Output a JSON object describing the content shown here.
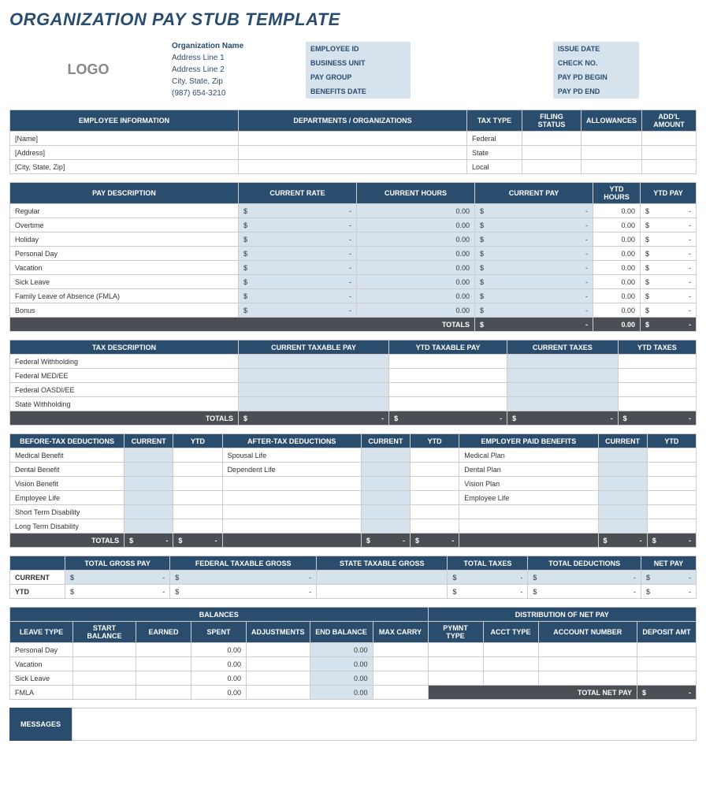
{
  "title": "ORGANIZATION PAY STUB TEMPLATE",
  "logo": "LOGO",
  "org": {
    "name": "Organization Name",
    "l1": "Address Line 1",
    "l2": "Address Line 2",
    "l3": "City, State, Zip",
    "l4": "(987) 654-3210"
  },
  "meta": {
    "left": [
      "EMPLOYEE ID",
      "BUSINESS UNIT",
      "PAY GROUP",
      "BENEFITS DATE"
    ],
    "right": [
      "ISSUE DATE",
      "CHECK NO.",
      "PAY PD BEGIN",
      "PAY PD END"
    ]
  },
  "emp": {
    "h1": "EMPLOYEE INFORMATION",
    "h2": "DEPARTMENTS / ORGANIZATIONS",
    "h3": "TAX TYPE",
    "h4": "FILING STATUS",
    "h5": "ALLOWANCES",
    "h6": "ADD'L AMOUNT",
    "rows": [
      "[Name]",
      "[Address]",
      "[City, State, Zip]"
    ],
    "tax": [
      "Federal",
      "State",
      "Local"
    ]
  },
  "pay": {
    "h": [
      "PAY DESCRIPTION",
      "CURRENT RATE",
      "CURRENT HOURS",
      "CURRENT PAY",
      "YTD HOURS",
      "YTD PAY"
    ],
    "rows": [
      "Regular",
      "Overtime",
      "Holiday",
      "Personal Day",
      "Vacation",
      "Sick Leave",
      "Family Leave of Absence (FMLA)",
      "Bonus"
    ],
    "rate": "$",
    "rateval": "-",
    "hours": "0.00",
    "cpay": "$",
    "cpayval": "-",
    "ytdh": "0.00",
    "ytdp": "$",
    "ytdpval": "-",
    "totlbl": "TOTALS",
    "tot_cp": "$",
    "tot_cpv": "-",
    "tot_yh": "0.00",
    "tot_yp": "$",
    "tot_ypv": "-"
  },
  "taxd": {
    "h": [
      "TAX DESCRIPTION",
      "CURRENT TAXABLE PAY",
      "YTD TAXABLE PAY",
      "CURRENT TAXES",
      "YTD TAXES"
    ],
    "rows": [
      "Federal Withholding",
      "Federal MED/EE",
      "Federal OASDI/EE",
      "State Withholding"
    ],
    "totlbl": "TOTALS",
    "d": "$",
    "dv": "-"
  },
  "ded": {
    "h": [
      "BEFORE-TAX DEDUCTIONS",
      "CURRENT",
      "YTD",
      "AFTER-TAX DEDUCTIONS",
      "CURRENT",
      "YTD",
      "EMPLOYER PAID BENEFITS",
      "CURRENT",
      "YTD"
    ],
    "before": [
      "Medical Benefit",
      "Dental Benefit",
      "Vision Benefit",
      "Employee Life",
      "Short Term Disability",
      "Long Term Disability"
    ],
    "after": [
      "Spousal Life",
      "Dependent Life"
    ],
    "emp": [
      "Medical Plan",
      "Dental Plan",
      "Vision Plan",
      "Employee Life"
    ],
    "totlbl": "TOTALS",
    "d": "$",
    "dv": "-"
  },
  "sum": {
    "h": [
      "",
      "TOTAL GROSS PAY",
      "FEDERAL TAXABLE GROSS",
      "STATE TAXABLE GROSS",
      "TOTAL TAXES",
      "TOTAL DEDUCTIONS",
      "NET PAY"
    ],
    "r1": "CURRENT",
    "r2": "YTD",
    "d": "$",
    "dv": "-"
  },
  "bal": {
    "sh1": "BALANCES",
    "sh2": "DISTRIBUTION OF NET PAY",
    "h1": [
      "LEAVE TYPE",
      "START BALANCE",
      "EARNED",
      "SPENT",
      "ADJUSTMENTS",
      "END BALANCE",
      "MAX CARRY"
    ],
    "h2": [
      "PYMNT TYPE",
      "ACCT TYPE",
      "ACCOUNT NUMBER",
      "DEPOSIT AMT"
    ],
    "rows": [
      "Personal Day",
      "Vacation",
      "Sick Leave",
      "FMLA"
    ],
    "z": "0.00",
    "netlbl": "TOTAL NET PAY",
    "d": "$",
    "dv": "-"
  },
  "msg": "MESSAGES"
}
